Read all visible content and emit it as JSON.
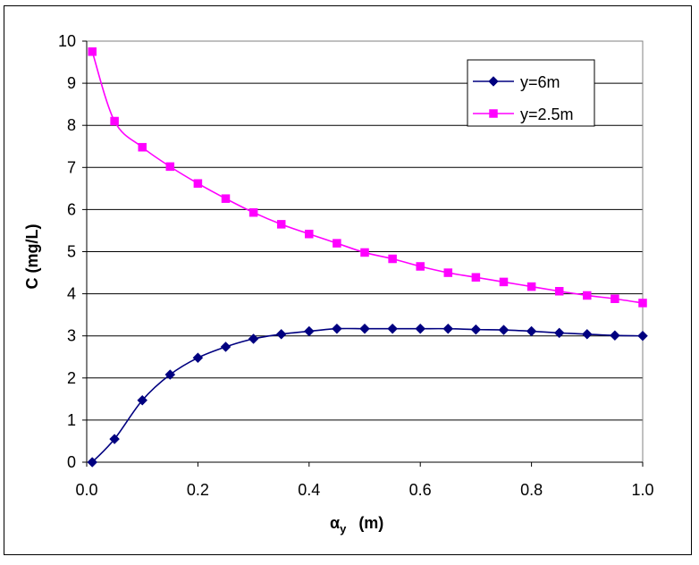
{
  "chart_data": {
    "type": "line",
    "title": "",
    "xlabel": "αy (m)",
    "xlabel_main": "α",
    "xlabel_sub": "y",
    "xlabel_unit": "(m)",
    "ylabel": "C (mg/L)",
    "xlim": [
      0,
      1.0
    ],
    "ylim": [
      0,
      10
    ],
    "x_ticks": [
      "0.0",
      "0.2",
      "0.4",
      "0.6",
      "0.8",
      "1.0"
    ],
    "y_ticks": [
      "0",
      "1",
      "2",
      "3",
      "4",
      "5",
      "6",
      "7",
      "8",
      "9",
      "10"
    ],
    "grid": "horizontal",
    "legend_position": "top-right",
    "series": [
      {
        "name": "y=6m",
        "color": "#000080",
        "marker": "diamond",
        "x": [
          0.01,
          0.05,
          0.1,
          0.15,
          0.2,
          0.25,
          0.3,
          0.35,
          0.4,
          0.45,
          0.5,
          0.55,
          0.6,
          0.65,
          0.7,
          0.75,
          0.8,
          0.85,
          0.9,
          0.95,
          1.0
        ],
        "y": [
          0.0,
          0.55,
          1.47,
          2.08,
          2.48,
          2.74,
          2.93,
          3.04,
          3.11,
          3.17,
          3.17,
          3.17,
          3.17,
          3.17,
          3.15,
          3.14,
          3.11,
          3.07,
          3.04,
          3.01,
          3.0
        ]
      },
      {
        "name": "y=2.5m",
        "color": "#FF00FF",
        "marker": "square",
        "x": [
          0.01,
          0.05,
          0.1,
          0.15,
          0.2,
          0.25,
          0.3,
          0.35,
          0.4,
          0.45,
          0.5,
          0.55,
          0.6,
          0.65,
          0.7,
          0.75,
          0.8,
          0.85,
          0.9,
          0.95,
          1.0
        ],
        "y": [
          9.75,
          8.1,
          7.48,
          7.02,
          6.62,
          6.26,
          5.93,
          5.65,
          5.42,
          5.2,
          4.98,
          4.83,
          4.65,
          4.5,
          4.39,
          4.28,
          4.17,
          4.06,
          3.96,
          3.88,
          3.78
        ]
      }
    ]
  }
}
